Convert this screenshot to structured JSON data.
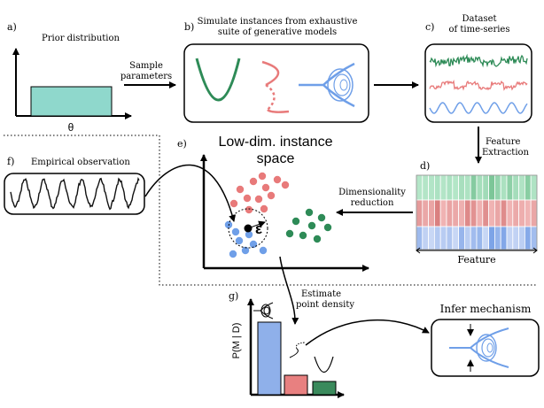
{
  "panels": {
    "a": {
      "label": "a)",
      "title": "Prior distribution",
      "axis_label": "θ"
    },
    "b": {
      "label": "b)",
      "title_line1": "Simulate instances from exhaustive",
      "title_line2": "suite of generative models"
    },
    "c": {
      "label": "c)",
      "title_line1": "Dataset",
      "title_line2": "of time-series"
    },
    "d": {
      "label": "d)",
      "axis_label": "Feature"
    },
    "e": {
      "label": "e)",
      "title_line1": "Low-dim. instance",
      "title_line2": "space",
      "epsilon": "ε"
    },
    "f": {
      "label": "f)",
      "title": "Empirical observation"
    },
    "g": {
      "label": "g)",
      "ylabel": "P(M | D)",
      "mech_title": "Infer mechanism"
    }
  },
  "arrows": {
    "sample": {
      "line1": "Sample",
      "line2": "parameters"
    },
    "feature": {
      "line1": "Feature",
      "line2": "Extraction"
    },
    "dimred": {
      "line1": "Dimensionality",
      "line2": "reduction"
    },
    "density": {
      "line1": "Estimate",
      "line2": "point density"
    }
  },
  "chart_data": {
    "type": "bar",
    "ylabel": "P(M | D)",
    "values": [
      0.82,
      0.22,
      0.15
    ],
    "colors": [
      "#8fb0ea",
      "#e88080",
      "#3a8a5c"
    ]
  },
  "colors": {
    "green": "#2e8b57",
    "red": "#e87a7a",
    "blue": "#6f9fe8",
    "teal": "#8fd8cc"
  }
}
